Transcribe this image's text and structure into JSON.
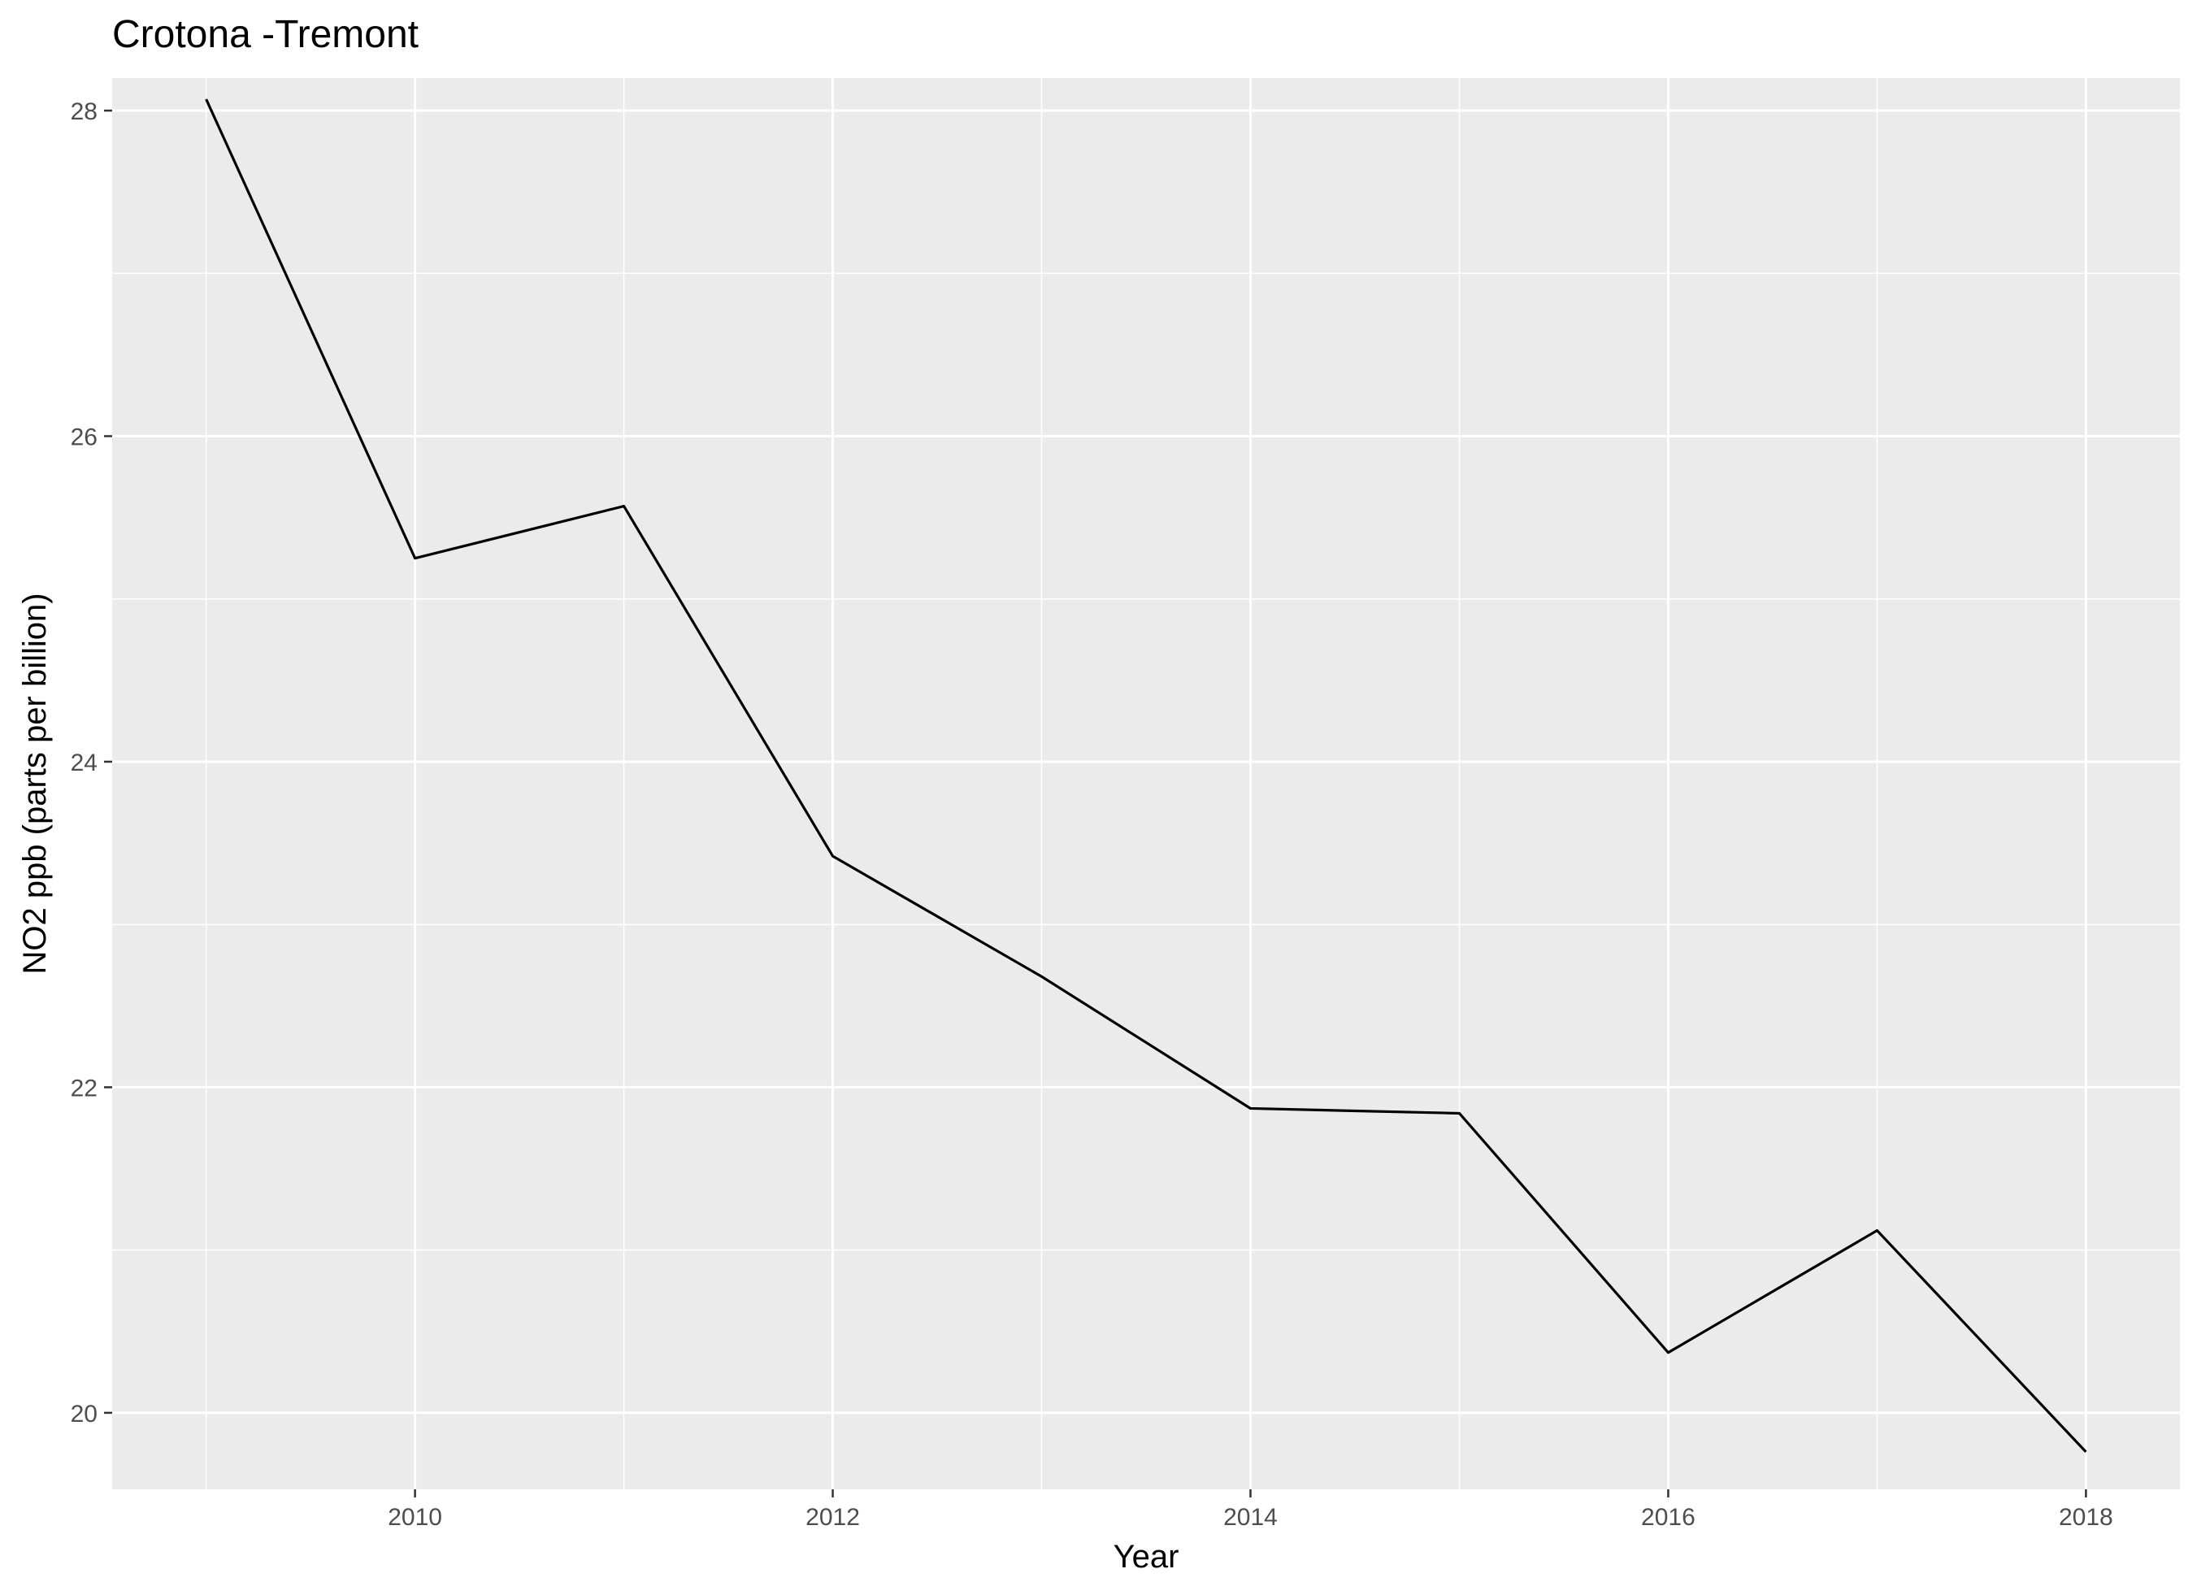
{
  "chart_data": {
    "type": "line",
    "title": "Crotona -Tremont",
    "xlabel": "Year",
    "ylabel": "NO2 ppb (parts per billion)",
    "xlim": [
      2008.55,
      2018.45
    ],
    "ylim": [
      19.53,
      28.2
    ],
    "x_ticks": [
      2010,
      2012,
      2014,
      2016,
      2018
    ],
    "y_ticks": [
      20,
      22,
      24,
      26,
      28
    ],
    "grid": true,
    "legend": "none",
    "series": [
      {
        "x": [
          2009,
          2010,
          2011,
          2012,
          2013,
          2014,
          2015,
          2016,
          2017,
          2018
        ],
        "y": [
          28.07,
          25.25,
          25.57,
          23.42,
          22.68,
          21.87,
          21.84,
          20.37,
          21.12,
          19.76
        ]
      }
    ],
    "colors": {
      "panel": "#ebebeb",
      "grid": "#ffffff",
      "line": "#000000",
      "tick": "#333333",
      "tick_label": "#4d4d4d"
    }
  }
}
